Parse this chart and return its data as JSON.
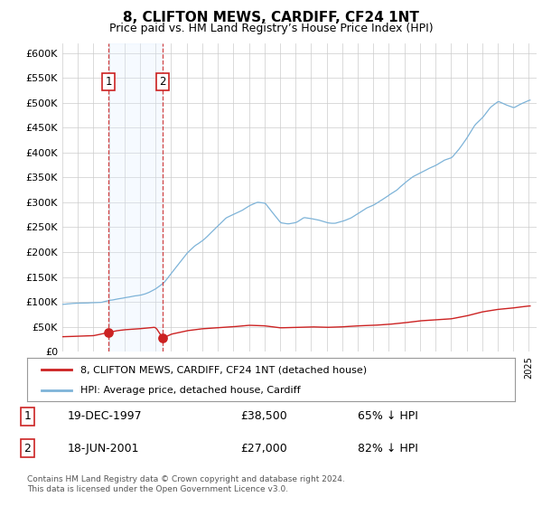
{
  "title": "8, CLIFTON MEWS, CARDIFF, CF24 1NT",
  "subtitle": "Price paid vs. HM Land Registry’s House Price Index (HPI)",
  "ylim": [
    0,
    620000
  ],
  "yticks": [
    0,
    50000,
    100000,
    150000,
    200000,
    250000,
    300000,
    350000,
    400000,
    450000,
    500000,
    550000,
    600000
  ],
  "background_color": "#ffffff",
  "grid_color": "#cccccc",
  "hpi_color": "#7db3d8",
  "price_color": "#cc2222",
  "shade_color": "#ddeeff",
  "sale1_date": 1997.97,
  "sale1_price": 38500,
  "sale2_date": 2001.46,
  "sale2_price": 27000,
  "sale1_label": "1",
  "sale2_label": "2",
  "sale1_date_str": "19-DEC-1997",
  "sale2_date_str": "18-JUN-2001",
  "sale1_pct": "65% ↓ HPI",
  "sale2_pct": "82% ↓ HPI",
  "sale1_price_str": "£38,500",
  "sale2_price_str": "£27,000",
  "legend_entry1": "8, CLIFTON MEWS, CARDIFF, CF24 1NT (detached house)",
  "legend_entry2": "HPI: Average price, detached house, Cardiff",
  "footer": "Contains HM Land Registry data © Crown copyright and database right 2024.\nThis data is licensed under the Open Government Licence v3.0.",
  "xmin": 1995.0,
  "xmax": 2025.5
}
